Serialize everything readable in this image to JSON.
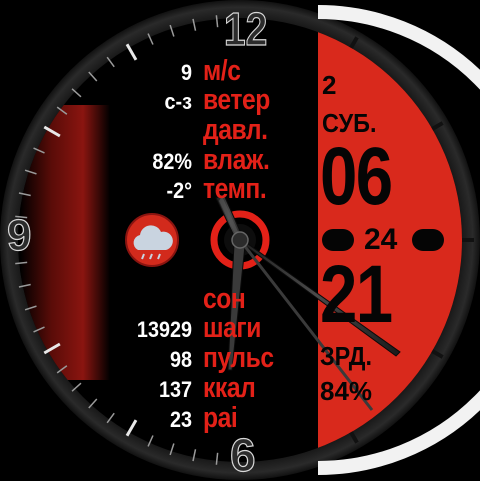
{
  "dial": {
    "numeral_12": "12",
    "numeral_9": "9",
    "numeral_6": "6"
  },
  "weather": {
    "wind_speed": "9",
    "wind_speed_unit": "м/с",
    "wind_dir": "с-з",
    "wind_label": "ветер",
    "pressure_label": "давл.",
    "humidity": "82%",
    "humidity_label": "влаж.",
    "temperature": "-2°",
    "temperature_label": "темп.",
    "icon": "cloud-rain-icon"
  },
  "activity": {
    "sleep_label": "сон",
    "steps": "13929",
    "steps_label": "шаги",
    "pulse": "98",
    "pulse_label": "пульс",
    "kcal": "137",
    "kcal_label": "ккал",
    "pai": "23",
    "pai_label": "pai"
  },
  "date_panel": {
    "weekday_num": "2",
    "weekday": "СУБ.",
    "hours": "06",
    "seconds": "24",
    "minutes": "21",
    "battery_label": "ЗРД.",
    "battery": "84%"
  },
  "colors": {
    "accent": "#e32118",
    "panel": "#d9291c",
    "dark_red": "#2a0504"
  },
  "hands": {
    "hour": "6:06",
    "minute": "21"
  }
}
